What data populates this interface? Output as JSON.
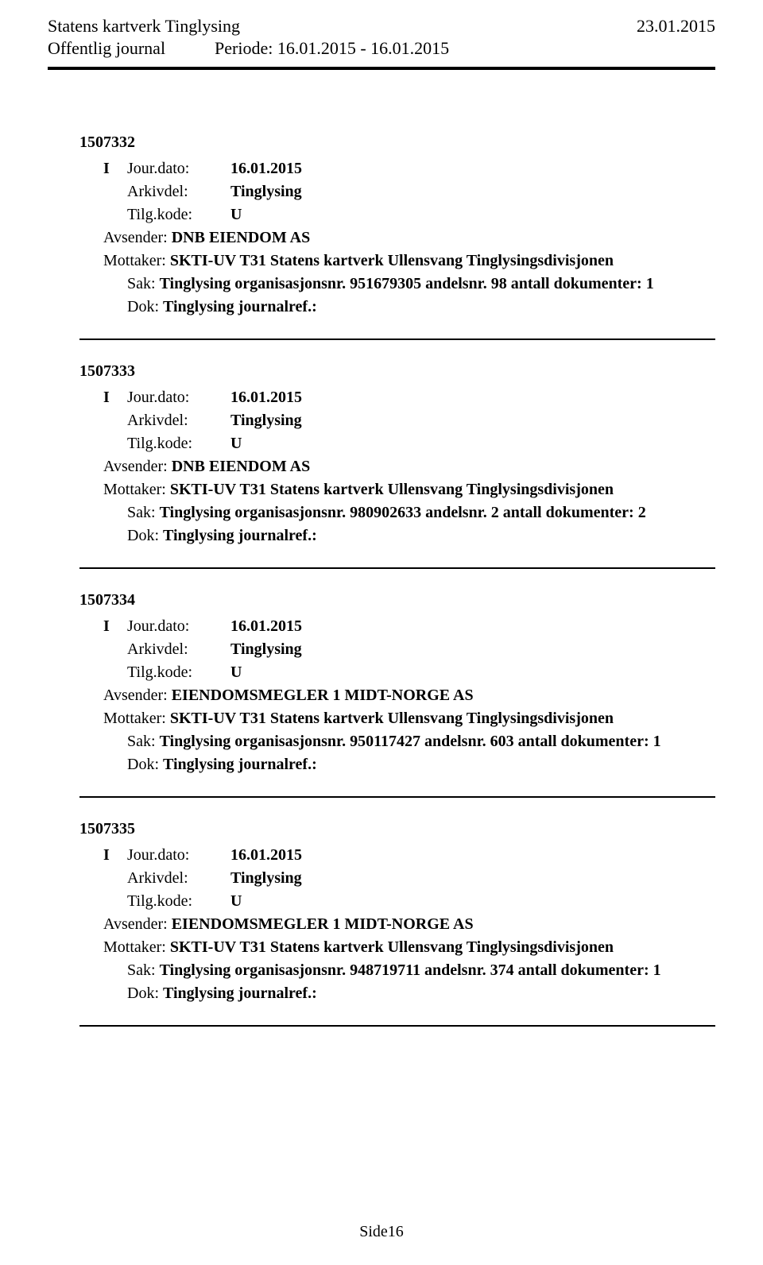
{
  "header": {
    "org": "Statens kartverk Tinglysing",
    "date": "23.01.2015",
    "journal_label": "Offentlig journal",
    "period_label": "Periode:",
    "period_value": "16.01.2015 - 16.01.2015"
  },
  "labels": {
    "jour_dato": "Jour.dato:",
    "arkivdel": "Arkivdel:",
    "tilg_kode": "Tilg.kode:",
    "avsender": "Avsender:",
    "mottaker": "Mottaker:",
    "sak": "Sak:",
    "dok": "Dok:"
  },
  "entries": [
    {
      "id": "1507332",
      "letter": "I",
      "jour_dato": "16.01.2015",
      "arkivdel": "Tinglysing",
      "tilg_kode": "U",
      "avsender": "DNB EIENDOM AS",
      "mottaker": "SKTI-UV T31 Statens kartverk Ullensvang Tinglysingsdivisjonen",
      "sak": "Tinglysing organisasjonsnr. 951679305 andelsnr. 98 antall dokumenter: 1",
      "dok": "Tinglysing journalref.:"
    },
    {
      "id": "1507333",
      "letter": "I",
      "jour_dato": "16.01.2015",
      "arkivdel": "Tinglysing",
      "tilg_kode": "U",
      "avsender": "DNB EIENDOM AS",
      "mottaker": "SKTI-UV T31 Statens kartverk Ullensvang Tinglysingsdivisjonen",
      "sak": "Tinglysing organisasjonsnr. 980902633 andelsnr. 2 antall dokumenter: 2",
      "dok": "Tinglysing journalref.:"
    },
    {
      "id": "1507334",
      "letter": "I",
      "jour_dato": "16.01.2015",
      "arkivdel": "Tinglysing",
      "tilg_kode": "U",
      "avsender": "EIENDOMSMEGLER 1 MIDT-NORGE AS",
      "mottaker": "SKTI-UV T31 Statens kartverk Ullensvang Tinglysingsdivisjonen",
      "sak": "Tinglysing organisasjonsnr. 950117427 andelsnr. 603 antall dokumenter: 1",
      "dok": "Tinglysing journalref.:"
    },
    {
      "id": "1507335",
      "letter": "I",
      "jour_dato": "16.01.2015",
      "arkivdel": "Tinglysing",
      "tilg_kode": "U",
      "avsender": "EIENDOMSMEGLER 1 MIDT-NORGE AS",
      "mottaker": "SKTI-UV T31 Statens kartverk Ullensvang Tinglysingsdivisjonen",
      "sak": "Tinglysing organisasjonsnr. 948719711 andelsnr. 374 antall dokumenter: 1",
      "dok": "Tinglysing journalref.:"
    }
  ],
  "footer": {
    "page": "Side16"
  }
}
